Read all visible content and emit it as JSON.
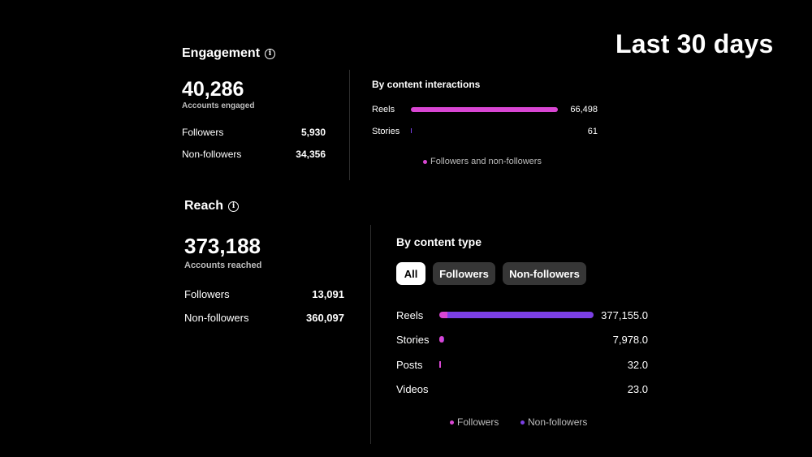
{
  "period_label": "Last 30 days",
  "colors": {
    "pink": "#d946d3",
    "purple": "#7b3fe4",
    "background": "#000000"
  },
  "engagement": {
    "title": "Engagement",
    "total": "40,286",
    "total_label": "Accounts engaged",
    "rows": [
      {
        "label": "Followers",
        "value": "5,930"
      },
      {
        "label": "Non-followers",
        "value": "34,356"
      }
    ],
    "breakdown": {
      "title": "By content interactions",
      "items": [
        {
          "label": "Reels",
          "value": "66,498",
          "fraction": 1.0
        },
        {
          "label": "Stories",
          "value": "61",
          "fraction": 0.001
        }
      ],
      "legend": "Followers and non-followers"
    }
  },
  "reach": {
    "title": "Reach",
    "total": "373,188",
    "total_label": "Accounts reached",
    "rows": [
      {
        "label": "Followers",
        "value": "13,091"
      },
      {
        "label": "Non-followers",
        "value": "360,097"
      }
    ],
    "breakdown": {
      "title": "By content type",
      "filters": [
        "All",
        "Followers",
        "Non-followers"
      ],
      "selected_filter": "All",
      "items": [
        {
          "label": "Reels",
          "value": "377,155.0",
          "fraction": 1.0,
          "followers_fraction": 0.05
        },
        {
          "label": "Stories",
          "value": "7,978.0",
          "fraction": 0.03,
          "followers_fraction": 0.9
        },
        {
          "label": "Posts",
          "value": "32.0",
          "fraction": 0.01,
          "followers_fraction": 1.0
        },
        {
          "label": "Videos",
          "value": "23.0",
          "fraction": 0.0,
          "followers_fraction": 1.0
        }
      ],
      "legend": [
        "Followers",
        "Non-followers"
      ]
    }
  }
}
